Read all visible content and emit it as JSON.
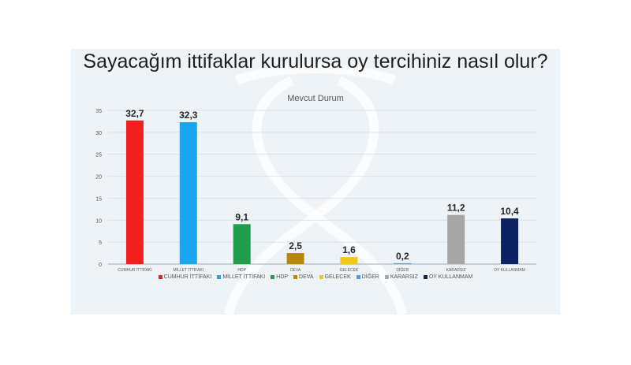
{
  "title": "Sayacağım ittifaklar kurulursa oy tercihiniz nasıl olur?",
  "colors": {
    "background": "#eef3f8",
    "grid": "#d5dbe2",
    "axis": "#8a8f96"
  },
  "chart_data": {
    "type": "bar",
    "title": "Mevcut Durum",
    "categories": [
      "CUMHUR İTTİFAKI",
      "MİLLET İTTİFAKI",
      "HDP",
      "DEVA",
      "GELECEK",
      "DİĞER",
      "KARARSIZ",
      "OY KULLANMAM"
    ],
    "values": [
      32.7,
      32.3,
      9.1,
      2.5,
      1.6,
      0.2,
      11.2,
      10.4
    ],
    "data_labels": [
      "32,7",
      "32,3",
      "9,1",
      "2,5",
      "1,6",
      "0,2",
      "11,2",
      "10,4"
    ],
    "colors": [
      "#f31e1e",
      "#1aa6ef",
      "#1f9e4e",
      "#b8860b",
      "#f5c518",
      "#5b9bd5",
      "#a6a6a6",
      "#0d2260"
    ],
    "yticks": [
      0,
      5,
      10,
      15,
      20,
      25,
      30,
      35
    ],
    "ylim": [
      0,
      35
    ],
    "grid": true,
    "legend": "bottom",
    "xlabel": "",
    "ylabel": ""
  }
}
